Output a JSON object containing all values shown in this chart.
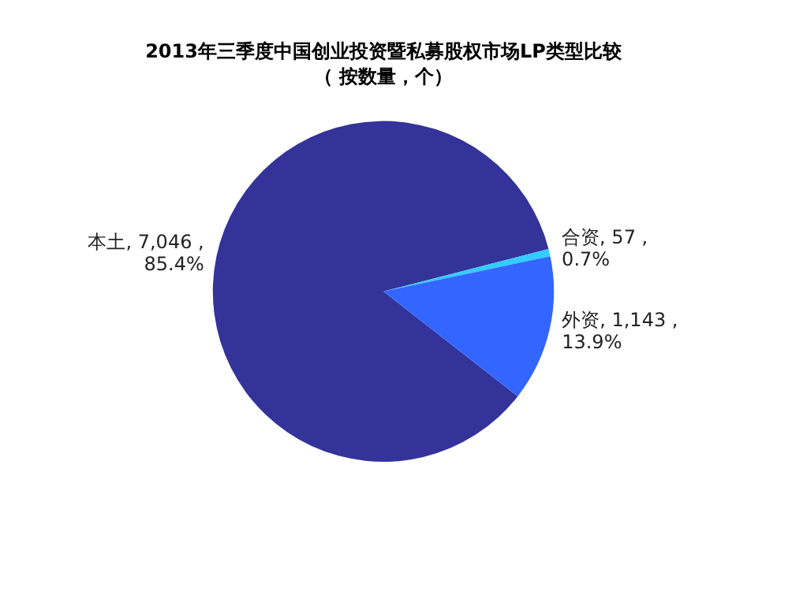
{
  "chart_data": {
    "type": "pie",
    "title": "2013年三季度中国创业投资暨私募股权市场LP类型比较",
    "subtitle": "（ 按数量，个）",
    "categories": [
      "本土",
      "合资",
      "外资"
    ],
    "values": [
      7046,
      57,
      1143
    ],
    "colors": [
      "#333399",
      "#33ccff",
      "#3366ff"
    ],
    "value_labels": [
      "7,046 , 85.4%",
      "57 , 0.7%",
      "1,143 , 13.9%"
    ],
    "legend": false
  }
}
